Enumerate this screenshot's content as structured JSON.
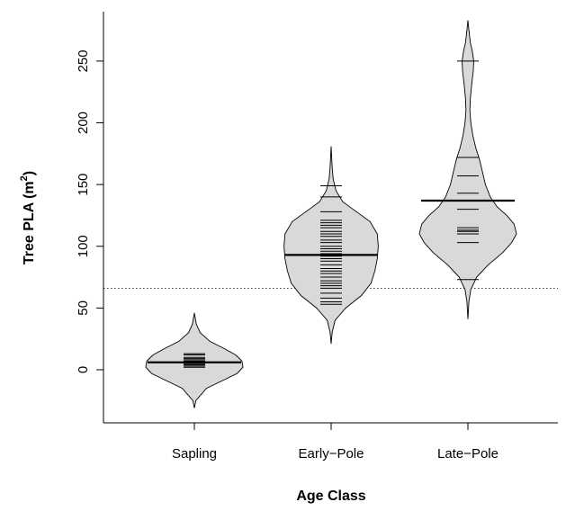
{
  "chart_data": {
    "type": "beanplot",
    "xlabel": "Age Class",
    "ylabel": {
      "main": "Tree PLA (m",
      "sup": "2",
      "close": ")"
    },
    "categories": [
      "Sapling",
      "Early−Pole",
      "Late−Pole"
    ],
    "ylim": [
      -43,
      290
    ],
    "yticks": [
      0,
      50,
      100,
      150,
      200,
      250
    ],
    "reference_line": 66,
    "series": [
      {
        "category": "Sapling",
        "mean": 6,
        "observations": [
          2,
          3,
          4,
          5,
          5,
          6,
          6,
          7,
          8,
          9,
          10,
          12,
          13
        ],
        "density": [
          [
            -31,
            0
          ],
          [
            -25,
            0.03
          ],
          [
            -15,
            0.25
          ],
          [
            -8,
            0.62
          ],
          [
            -3,
            0.88
          ],
          [
            2,
            1.0
          ],
          [
            7,
            0.98
          ],
          [
            12,
            0.85
          ],
          [
            17,
            0.62
          ],
          [
            23,
            0.32
          ],
          [
            30,
            0.12
          ],
          [
            37,
            0.04
          ],
          [
            46,
            0
          ]
        ]
      },
      {
        "category": "Early−Pole",
        "mean": 93,
        "observations": [
          53,
          55,
          58,
          62,
          66,
          68,
          70,
          72,
          75,
          78,
          80,
          82,
          85,
          88,
          90,
          92,
          94,
          96,
          98,
          100,
          103,
          105,
          108,
          110,
          112,
          115,
          117,
          119,
          121,
          128,
          140,
          149
        ],
        "density": [
          [
            21,
            0
          ],
          [
            30,
            0.02
          ],
          [
            40,
            0.08
          ],
          [
            50,
            0.3
          ],
          [
            60,
            0.62
          ],
          [
            70,
            0.82
          ],
          [
            80,
            0.9
          ],
          [
            90,
            0.95
          ],
          [
            100,
            0.97
          ],
          [
            110,
            0.95
          ],
          [
            120,
            0.8
          ],
          [
            128,
            0.52
          ],
          [
            136,
            0.24
          ],
          [
            145,
            0.1
          ],
          [
            155,
            0.04
          ],
          [
            165,
            0.02
          ],
          [
            181,
            0
          ]
        ]
      },
      {
        "category": "Late−Pole",
        "mean": 137,
        "observations": [
          73,
          103,
          110,
          112,
          113,
          115,
          130,
          143,
          157,
          172,
          250
        ],
        "density": [
          [
            41,
            0
          ],
          [
            55,
            0.02
          ],
          [
            65,
            0.06
          ],
          [
            75,
            0.18
          ],
          [
            85,
            0.42
          ],
          [
            95,
            0.72
          ],
          [
            103,
            0.9
          ],
          [
            110,
            1.0
          ],
          [
            118,
            0.95
          ],
          [
            125,
            0.8
          ],
          [
            132,
            0.6
          ],
          [
            140,
            0.46
          ],
          [
            150,
            0.36
          ],
          [
            160,
            0.3
          ],
          [
            170,
            0.24
          ],
          [
            180,
            0.16
          ],
          [
            190,
            0.1
          ],
          [
            200,
            0.06
          ],
          [
            210,
            0.04
          ],
          [
            220,
            0.05
          ],
          [
            232,
            0.08
          ],
          [
            242,
            0.11
          ],
          [
            250,
            0.12
          ],
          [
            258,
            0.09
          ],
          [
            265,
            0.05
          ],
          [
            275,
            0.02
          ],
          [
            283,
            0
          ]
        ]
      }
    ]
  }
}
